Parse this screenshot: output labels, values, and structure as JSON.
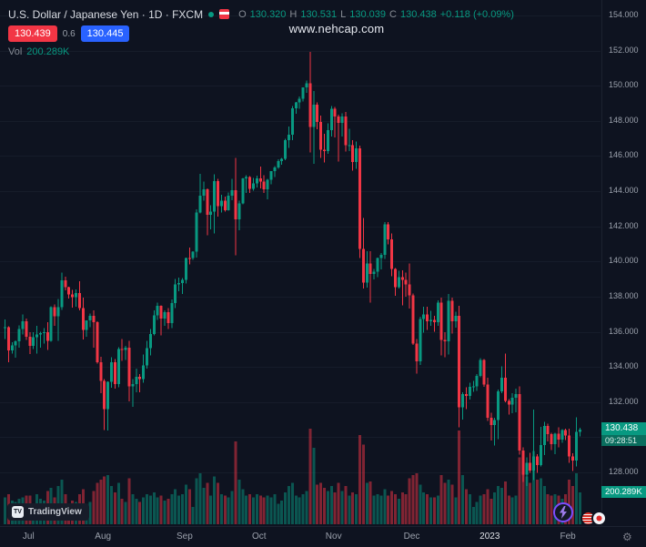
{
  "watermark": "www.nehcap.com",
  "legend": {
    "title": "U.S. Dollar / Japanese Yen · 1D · FXCM",
    "ohlc": {
      "o_label": "O",
      "o": "130.320",
      "h_label": "H",
      "h": "130.531",
      "l_label": "L",
      "l": "130.039",
      "c_label": "C",
      "c": "130.438"
    },
    "change": "+0.118 (+0.09%)",
    "bid": "130.439",
    "spread": "0.6",
    "ask": "130.445",
    "vol_label": "Vol",
    "vol": "200.289K"
  },
  "axis_labels": {
    "price": "130.438",
    "countdown": "09:28:51",
    "volume": "200.289K"
  },
  "branding": {
    "logo_mark": "TV",
    "logo_text": "TradingView"
  },
  "icons": {
    "gear": "⚙"
  },
  "colors": {
    "background": "#0e1320",
    "up": "#089981",
    "down": "#f23645",
    "bid_bg": "#f23645",
    "ask_bg": "#2962ff",
    "price_label_bg": "#089981",
    "countdown_bg": "#0a6e5e",
    "axis_text": "#9ba1ac",
    "accent_purple": "#7c4dff"
  },
  "chart_data": {
    "type": "candlestick",
    "title": "U.S. Dollar / Japanese Yen",
    "interval": "1D",
    "exchange": "FXCM",
    "legend_note": "volume pane overlaid at bottom",
    "last_price": 130.438,
    "last_volume_k": 200.289,
    "ylim": [
      124.95,
      154.88
    ],
    "y_ticks": [
      "154.000",
      "152.000",
      "150.000",
      "148.000",
      "146.000",
      "144.000",
      "142.000",
      "140.000",
      "138.000",
      "136.000",
      "134.000",
      "132.000",
      "130.000",
      "128.000"
    ],
    "x_ticks": [
      {
        "label": "Jul",
        "index": 7,
        "major": false
      },
      {
        "label": "Aug",
        "index": 28,
        "major": false
      },
      {
        "label": "Sep",
        "index": 51,
        "major": false
      },
      {
        "label": "Oct",
        "index": 72,
        "major": false
      },
      {
        "label": "Nov",
        "index": 93,
        "major": false
      },
      {
        "label": "Dec",
        "index": 115,
        "major": false
      },
      {
        "label": "2023",
        "index": 137,
        "major": true
      },
      {
        "label": "Feb",
        "index": 159,
        "major": false
      }
    ],
    "volume_scale_max_k": 600,
    "candle_format": [
      "open",
      "high",
      "low",
      "close",
      "volume_k"
    ],
    "candles": [
      [
        136.25,
        136.7,
        135.6,
        136.26,
        170
      ],
      [
        136.26,
        136.32,
        134.27,
        134.95,
        190
      ],
      [
        134.95,
        135.4,
        134.75,
        135.23,
        150
      ],
      [
        135.23,
        135.52,
        134.53,
        135.47,
        140
      ],
      [
        135.47,
        136.37,
        135.1,
        136.15,
        160
      ],
      [
        136.15,
        137.0,
        135.85,
        136.59,
        170
      ],
      [
        136.59,
        136.75,
        135.55,
        135.72,
        180
      ],
      [
        135.72,
        135.99,
        134.74,
        135.19,
        180
      ],
      [
        135.19,
        135.97,
        135.03,
        135.69,
        120
      ],
      [
        135.69,
        136.35,
        134.77,
        135.85,
        190
      ],
      [
        135.85,
        136.0,
        135.1,
        135.93,
        160
      ],
      [
        135.93,
        136.2,
        135.32,
        135.98,
        150
      ],
      [
        135.98,
        136.56,
        134.96,
        135.5,
        210
      ],
      [
        135.5,
        137.45,
        135.44,
        137.4,
        230
      ],
      [
        137.4,
        137.55,
        136.35,
        136.88,
        170
      ],
      [
        136.88,
        137.86,
        135.5,
        137.4,
        240
      ],
      [
        137.4,
        139.38,
        137.25,
        138.94,
        280
      ],
      [
        138.94,
        139.13,
        138.36,
        138.54,
        190
      ],
      [
        138.54,
        138.58,
        137.89,
        138.12,
        110
      ],
      [
        138.12,
        138.38,
        137.38,
        137.98,
        150
      ],
      [
        137.98,
        138.42,
        137.42,
        138.2,
        140
      ],
      [
        138.2,
        138.88,
        137.23,
        137.34,
        190
      ],
      [
        137.34,
        137.95,
        135.56,
        136.1,
        220
      ],
      [
        136.1,
        136.62,
        135.73,
        136.64,
        130
      ],
      [
        136.64,
        137.05,
        136.27,
        136.92,
        140
      ],
      [
        136.92,
        137.21,
        135.1,
        136.56,
        210
      ],
      [
        136.56,
        136.59,
        134.2,
        134.27,
        260
      ],
      [
        134.27,
        134.58,
        132.5,
        133.22,
        280
      ],
      [
        133.22,
        133.3,
        130.41,
        131.6,
        300
      ],
      [
        131.6,
        133.19,
        130.4,
        133.17,
        310
      ],
      [
        133.17,
        134.55,
        132.82,
        134.26,
        240
      ],
      [
        134.26,
        134.46,
        132.76,
        133.03,
        200
      ],
      [
        133.03,
        135.12,
        132.85,
        135.01,
        260
      ],
      [
        135.01,
        135.58,
        134.35,
        134.98,
        160
      ],
      [
        134.98,
        135.2,
        134.4,
        135.1,
        140
      ],
      [
        135.1,
        135.5,
        132.04,
        132.9,
        290
      ],
      [
        132.9,
        133.32,
        131.74,
        133.02,
        190
      ],
      [
        133.02,
        133.9,
        132.55,
        133.44,
        160
      ],
      [
        133.44,
        133.6,
        132.56,
        133.31,
        140
      ],
      [
        133.31,
        134.7,
        133.1,
        134.1,
        170
      ],
      [
        134.1,
        135.5,
        133.9,
        135.07,
        190
      ],
      [
        135.07,
        136.16,
        134.65,
        135.88,
        180
      ],
      [
        135.88,
        137.23,
        135.8,
        136.93,
        200
      ],
      [
        136.93,
        137.66,
        136.67,
        137.47,
        170
      ],
      [
        137.47,
        137.52,
        135.81,
        136.75,
        180
      ],
      [
        136.75,
        137.23,
        136.35,
        137.12,
        150
      ],
      [
        137.12,
        137.34,
        136.17,
        136.49,
        160
      ],
      [
        136.49,
        137.85,
        136.2,
        137.64,
        190
      ],
      [
        137.64,
        139.0,
        137.35,
        138.7,
        220
      ],
      [
        138.7,
        139.08,
        138.31,
        138.78,
        180
      ],
      [
        138.78,
        139.07,
        138.15,
        138.96,
        190
      ],
      [
        138.96,
        140.23,
        138.74,
        140.21,
        250
      ],
      [
        140.21,
        140.8,
        139.85,
        140.2,
        220
      ],
      [
        140.2,
        140.6,
        140.1,
        140.57,
        110
      ],
      [
        140.57,
        142.97,
        140.23,
        142.8,
        290
      ],
      [
        142.8,
        144.99,
        142.75,
        143.75,
        320
      ],
      [
        143.75,
        144.54,
        143.47,
        144.1,
        230
      ],
      [
        144.1,
        144.15,
        141.5,
        142.65,
        260
      ],
      [
        142.65,
        143.2,
        141.84,
        142.84,
        180
      ],
      [
        142.84,
        144.96,
        141.6,
        144.57,
        300
      ],
      [
        144.57,
        144.7,
        142.55,
        143.16,
        260
      ],
      [
        143.16,
        143.8,
        142.8,
        143.47,
        190
      ],
      [
        143.47,
        143.7,
        142.85,
        142.92,
        180
      ],
      [
        142.92,
        143.92,
        142.9,
        143.74,
        170
      ],
      [
        143.74,
        144.7,
        143.5,
        144.06,
        210
      ],
      [
        144.06,
        145.9,
        140.36,
        142.39,
        520
      ],
      [
        142.39,
        143.46,
        141.77,
        143.31,
        280
      ],
      [
        143.31,
        144.75,
        143.26,
        144.72,
        220
      ],
      [
        144.72,
        144.9,
        143.9,
        144.8,
        180
      ],
      [
        144.8,
        144.87,
        143.9,
        144.14,
        190
      ],
      [
        144.14,
        144.76,
        144.04,
        144.45,
        170
      ],
      [
        144.45,
        144.88,
        144.2,
        144.74,
        190
      ],
      [
        144.74,
        145.4,
        144.16,
        144.56,
        180
      ],
      [
        144.56,
        144.9,
        143.9,
        144.12,
        170
      ],
      [
        144.12,
        144.7,
        143.53,
        144.65,
        180
      ],
      [
        144.65,
        145.15,
        144.4,
        145.14,
        170
      ],
      [
        145.14,
        145.44,
        144.8,
        145.35,
        190
      ],
      [
        145.35,
        145.83,
        145.27,
        145.72,
        130
      ],
      [
        145.72,
        145.9,
        145.5,
        145.85,
        150
      ],
      [
        145.85,
        146.98,
        145.77,
        146.91,
        200
      ],
      [
        146.91,
        147.67,
        146.47,
        147.22,
        240
      ],
      [
        147.22,
        148.86,
        146.9,
        148.71,
        260
      ],
      [
        148.71,
        149.09,
        148.42,
        149.05,
        180
      ],
      [
        149.05,
        149.39,
        148.7,
        149.25,
        170
      ],
      [
        149.25,
        149.92,
        149.1,
        149.9,
        190
      ],
      [
        149.9,
        150.29,
        149.6,
        150.14,
        210
      ],
      [
        150.14,
        151.94,
        146.2,
        147.65,
        600
      ],
      [
        147.65,
        149.7,
        145.56,
        148.93,
        480
      ],
      [
        148.93,
        149.05,
        147.53,
        147.93,
        250
      ],
      [
        147.93,
        148.3,
        145.9,
        146.37,
        260
      ],
      [
        146.37,
        147.26,
        145.63,
        146.28,
        230
      ],
      [
        146.28,
        147.86,
        146.12,
        147.47,
        210
      ],
      [
        147.47,
        148.84,
        147.12,
        148.7,
        240
      ],
      [
        148.7,
        148.8,
        147.07,
        148.24,
        200
      ],
      [
        148.24,
        148.35,
        145.68,
        147.88,
        260
      ],
      [
        147.88,
        148.43,
        147.1,
        148.25,
        210
      ],
      [
        148.25,
        148.52,
        146.27,
        146.62,
        240
      ],
      [
        146.62,
        147.56,
        146.28,
        146.63,
        180
      ],
      [
        146.63,
        146.9,
        145.17,
        145.66,
        200
      ],
      [
        145.66,
        146.83,
        145.28,
        146.45,
        190
      ],
      [
        146.45,
        146.59,
        140.19,
        140.72,
        560
      ],
      [
        140.72,
        142.48,
        138.46,
        138.81,
        500
      ],
      [
        138.81,
        140.6,
        138.52,
        139.9,
        260
      ],
      [
        139.9,
        140.6,
        137.67,
        139.3,
        270
      ],
      [
        139.3,
        139.58,
        138.98,
        139.42,
        180
      ],
      [
        139.42,
        140.23,
        139.12,
        140.2,
        190
      ],
      [
        140.2,
        140.49,
        139.55,
        140.37,
        180
      ],
      [
        140.37,
        142.25,
        140.14,
        142.12,
        220
      ],
      [
        142.12,
        142.25,
        140.98,
        141.25,
        180
      ],
      [
        141.25,
        141.6,
        139.16,
        139.58,
        210
      ],
      [
        139.58,
        139.62,
        138.05,
        138.54,
        190
      ],
      [
        138.54,
        139.48,
        138.46,
        139.1,
        160
      ],
      [
        139.1,
        139.5,
        137.5,
        138.95,
        200
      ],
      [
        138.95,
        139.36,
        138.0,
        138.7,
        190
      ],
      [
        138.7,
        139.89,
        137.32,
        138.07,
        290
      ],
      [
        138.07,
        138.18,
        135.25,
        135.32,
        310
      ],
      [
        135.32,
        135.58,
        133.62,
        134.31,
        320
      ],
      [
        134.31,
        136.86,
        134.11,
        136.73,
        250
      ],
      [
        136.73,
        137.44,
        135.95,
        137.0,
        200
      ],
      [
        137.0,
        137.42,
        136.12,
        136.6,
        190
      ],
      [
        136.6,
        137.2,
        136.35,
        136.67,
        170
      ],
      [
        136.67,
        136.9,
        136.0,
        136.56,
        170
      ],
      [
        136.56,
        137.8,
        136.33,
        137.66,
        180
      ],
      [
        137.66,
        137.95,
        134.66,
        135.55,
        310
      ],
      [
        135.55,
        135.98,
        134.55,
        135.47,
        260
      ],
      [
        135.47,
        138.15,
        134.7,
        137.77,
        280
      ],
      [
        137.77,
        137.95,
        135.9,
        136.6,
        250
      ],
      [
        136.6,
        137.15,
        136.25,
        136.9,
        170
      ],
      [
        136.9,
        137.48,
        130.58,
        131.71,
        590
      ],
      [
        131.71,
        132.55,
        131.02,
        132.47,
        310
      ],
      [
        132.47,
        132.85,
        131.6,
        132.35,
        220
      ],
      [
        132.35,
        133.1,
        132.15,
        132.86,
        190
      ],
      [
        132.86,
        133.2,
        132.6,
        132.9,
        110
      ],
      [
        132.9,
        133.6,
        132.65,
        133.5,
        140
      ],
      [
        133.5,
        134.5,
        133.42,
        134.4,
        180
      ],
      [
        134.4,
        134.45,
        132.87,
        133.0,
        190
      ],
      [
        133.0,
        133.4,
        130.92,
        131.1,
        220
      ],
      [
        131.1,
        131.4,
        129.82,
        130.7,
        160
      ],
      [
        130.7,
        131.1,
        129.52,
        130.97,
        200
      ],
      [
        130.97,
        132.73,
        129.9,
        132.62,
        240
      ],
      [
        132.62,
        134.05,
        132.5,
        133.4,
        230
      ],
      [
        133.4,
        134.77,
        131.98,
        132.08,
        270
      ],
      [
        132.08,
        132.18,
        131.3,
        131.85,
        180
      ],
      [
        131.85,
        132.5,
        131.38,
        132.25,
        170
      ],
      [
        132.25,
        132.78,
        131.41,
        132.45,
        180
      ],
      [
        132.45,
        132.9,
        129.02,
        129.25,
        420
      ],
      [
        129.25,
        129.42,
        127.46,
        127.87,
        380
      ],
      [
        127.87,
        128.87,
        127.23,
        128.55,
        300
      ],
      [
        128.55,
        129.13,
        127.98,
        128.1,
        260
      ],
      [
        128.1,
        131.58,
        127.57,
        128.9,
        460
      ],
      [
        128.9,
        129.05,
        127.97,
        128.43,
        280
      ],
      [
        128.43,
        130.6,
        128.35,
        129.56,
        290
      ],
      [
        129.56,
        130.89,
        129.0,
        130.65,
        240
      ],
      [
        130.65,
        130.77,
        129.77,
        130.17,
        190
      ],
      [
        130.17,
        130.27,
        129.27,
        129.6,
        180
      ],
      [
        129.6,
        130.27,
        129.03,
        130.21,
        190
      ],
      [
        130.21,
        130.58,
        129.42,
        129.86,
        180
      ],
      [
        129.86,
        130.46,
        129.68,
        130.42,
        160
      ],
      [
        130.42,
        130.5,
        129.84,
        130.1,
        190
      ],
      [
        130.1,
        130.49,
        128.55,
        128.9,
        280
      ],
      [
        128.9,
        129.1,
        128.08,
        128.68,
        240
      ],
      [
        128.68,
        131.15,
        128.33,
        130.32,
        320
      ],
      [
        130.32,
        130.531,
        130.039,
        130.438,
        200.289
      ]
    ]
  }
}
